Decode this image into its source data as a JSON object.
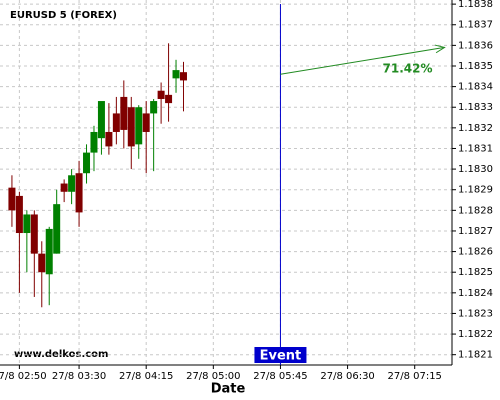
{
  "chart_data": {
    "type": "candlestick",
    "title": "EURUSD 5 (FOREX)",
    "xlabel": "Date",
    "watermark": "www.delkos.com",
    "x": [
      "27/8 02:45",
      "27/8 02:50",
      "27/8 02:55",
      "27/8 03:00",
      "27/8 03:05",
      "27/8 03:10",
      "27/8 03:15",
      "27/8 03:20",
      "27/8 03:25",
      "27/8 03:30",
      "27/8 03:35",
      "27/8 03:40",
      "27/8 03:45",
      "27/8 03:50",
      "27/8 03:55",
      "27/8 04:00",
      "27/8 04:05",
      "27/8 04:10",
      "27/8 04:15",
      "27/8 04:20",
      "27/8 04:25",
      "27/8 04:30",
      "27/8 04:35",
      "27/8 04:40"
    ],
    "open": [
      1.18291,
      1.18287,
      1.18269,
      1.18278,
      1.18259,
      1.18249,
      1.18259,
      1.18293,
      1.18289,
      1.18298,
      1.18298,
      1.18308,
      1.18315,
      1.18318,
      1.18327,
      1.18335,
      1.1833,
      1.18312,
      1.18327,
      1.18327,
      1.18338,
      1.18336,
      1.18344,
      1.18347
    ],
    "high": [
      1.18297,
      1.18289,
      1.1828,
      1.1828,
      1.18265,
      1.18272,
      1.1829,
      1.18295,
      1.183,
      1.18304,
      1.18312,
      1.18321,
      1.18332,
      1.18332,
      1.18335,
      1.18343,
      1.18335,
      1.18331,
      1.18333,
      1.18334,
      1.18342,
      1.18361,
      1.18353,
      1.18352
    ],
    "low": [
      1.18272,
      1.1824,
      1.1825,
      1.18238,
      1.18233,
      1.18234,
      1.18259,
      1.18284,
      1.18283,
      1.18272,
      1.18293,
      1.18299,
      1.18307,
      1.18307,
      1.18312,
      1.1831,
      1.183,
      1.18305,
      1.18298,
      1.18299,
      1.18322,
      1.18323,
      1.18337,
      1.18328
    ],
    "close": [
      1.1828,
      1.18269,
      1.18278,
      1.18259,
      1.1825,
      1.18271,
      1.18283,
      1.18289,
      1.18297,
      1.18279,
      1.18308,
      1.18318,
      1.18333,
      1.18311,
      1.18318,
      1.18319,
      1.18311,
      1.1833,
      1.18318,
      1.18333,
      1.18334,
      1.18332,
      1.18348,
      1.18343
    ],
    "up_color": "#008000",
    "down_color": "#800000",
    "ylim": [
      1.18205,
      1.18382
    ],
    "yticks": [
      1.1821,
      1.1822,
      1.1823,
      1.1824,
      1.1825,
      1.1826,
      1.1827,
      1.1828,
      1.1829,
      {
        "value": 1.183,
        "label": "1.1830"
      },
      1.1831,
      1.1832,
      1.1833,
      1.1834,
      1.1835,
      1.1836,
      1.1837,
      1.1838
    ],
    "xlim": [
      "27/8 02:37",
      "27/8 07:40"
    ],
    "xticks": [
      "27/8 02:50",
      "27/8 03:30",
      "27/8 04:15",
      "27/8 05:00",
      "27/8 05:45",
      "27/8 06:30",
      "27/8 07:15"
    ],
    "grid": true,
    "event": {
      "x": "27/8 05:45",
      "label": "Event",
      "color": "#0000cc"
    },
    "arrow": {
      "x": [
        "27/8 05:45",
        "27/8 07:35"
      ],
      "y": [
        1.18346,
        1.18359
      ],
      "label": "71.42%",
      "color": "#228b22"
    }
  }
}
